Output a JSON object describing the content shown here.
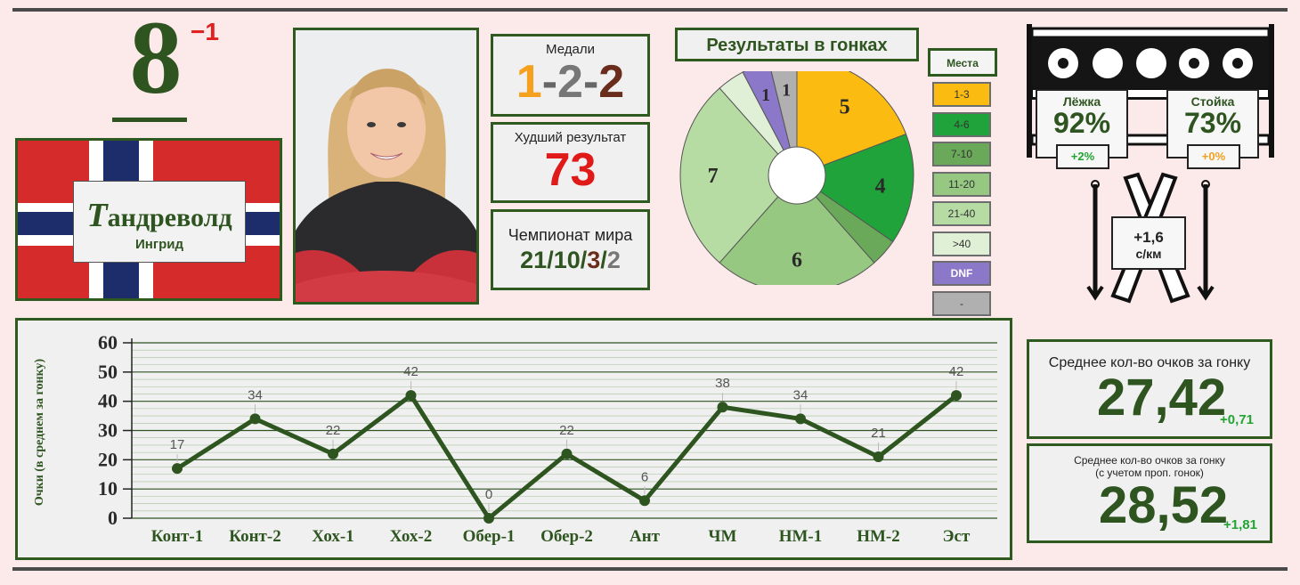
{
  "athlete": {
    "rank": "8",
    "rank_delta": "−1",
    "surname_initial": "Т",
    "surname_rest": "андреволд",
    "first_name": "Ингрид"
  },
  "medals": {
    "label": "Медали",
    "gold": "1",
    "silver": "2",
    "bronze": "2",
    "sep": "-"
  },
  "worst": {
    "label": "Худший результат",
    "value": "73"
  },
  "world_champ": {
    "label": "Чемпионат мира",
    "a": "21",
    "b": "10",
    "c": "3",
    "d": "2",
    "sep": "/"
  },
  "race_results": {
    "title": "Результаты в гонках",
    "legend_title": "Места",
    "legend": [
      "1-3",
      "4-6",
      "7-10",
      "11-20",
      "21-40",
      ">40",
      "DNF",
      "-"
    ],
    "colors": {
      "1-3": "#fbbb11",
      "4-6": "#1fa33a",
      "7-10": "#6aa85a",
      "11-20": "#96c882",
      "21-40": "#b6dca3",
      ">40": "#dff0d6",
      "DNF": "#8c78c8",
      "-": "#b0b0b0"
    },
    "slices": [
      {
        "cat": "1-3",
        "count": 5,
        "label": "5"
      },
      {
        "cat": "4-6",
        "count": 4,
        "label": "4"
      },
      {
        "cat": "7-10",
        "count": 1,
        "label": ""
      },
      {
        "cat": "11-20",
        "count": 6,
        "label": "6"
      },
      {
        "cat": "21-40",
        "count": 7,
        "label": "7"
      },
      {
        "cat": ">40",
        "count": 1,
        "label": ""
      },
      {
        "cat": "DNF",
        "count": 1,
        "label": "1"
      },
      {
        "cat": "-",
        "count": 1,
        "label": "1"
      }
    ]
  },
  "shooting": {
    "prone_label": "Лёжка",
    "prone_value": "92%",
    "prone_delta": "+2%",
    "standing_label": "Стойка",
    "standing_value": "73%",
    "standing_delta": "+0%"
  },
  "ski": {
    "value": "+1,6",
    "unit": "с/км"
  },
  "avg_points": {
    "label": "Среднее кол-во очков за гонку",
    "value": "27,42",
    "delta": "+0,71"
  },
  "avg_points_adj": {
    "label1": "Среднее кол-во очков за гонку",
    "label2": "(с учетом проп. гонок)",
    "value": "28,52",
    "delta": "+1,81"
  },
  "chart_data": {
    "type": "line",
    "categories": [
      "Конт-1",
      "Конт-2",
      "Хох-1",
      "Хох-2",
      "Обер-1",
      "Обер-2",
      "Ант",
      "ЧМ",
      "НМ-1",
      "НМ-2",
      "Эст"
    ],
    "values": [
      17,
      34,
      22,
      42,
      0,
      22,
      6,
      38,
      34,
      21,
      42
    ],
    "ylabel": "Очки (в среднем за гонку)",
    "ylim": [
      0,
      60
    ],
    "yticks": [
      0,
      10,
      20,
      30,
      40,
      50,
      60
    ],
    "color": "#2e5420"
  }
}
